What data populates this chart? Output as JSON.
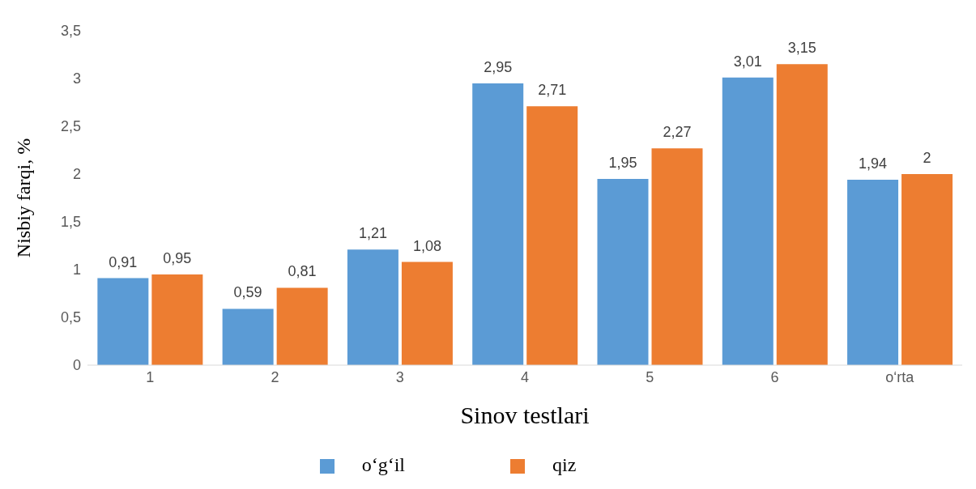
{
  "chart_data": {
    "type": "bar",
    "xlabel": "Sinov testlari",
    "ylabel": "Nisbiy farqi, %",
    "categories": [
      "1",
      "2",
      "3",
      "4",
      "5",
      "6",
      "o‘rta"
    ],
    "series": [
      {
        "name": "o‘g‘il",
        "color": "#5b9bd5",
        "values": [
          0.91,
          0.59,
          1.21,
          2.95,
          1.95,
          3.01,
          1.94
        ],
        "value_labels": [
          "0,91",
          "0,59",
          "1,21",
          "2,95",
          "1,95",
          "3,01",
          "1,94"
        ]
      },
      {
        "name": "qiz",
        "color": "#ed7d31",
        "values": [
          0.95,
          0.81,
          1.08,
          2.71,
          2.27,
          3.15,
          2
        ],
        "value_labels": [
          "0,95",
          "0,81",
          "1,08",
          "2,71",
          "2,27",
          "3,15",
          "2"
        ]
      }
    ],
    "ylim": [
      0,
      3.5
    ],
    "yticks": [
      0,
      {
        "value": 0.5,
        "label": "0,5"
      },
      1,
      {
        "value": 1.5,
        "label": "1,5"
      },
      2,
      {
        "value": 2.5,
        "label": "2,5"
      },
      3,
      {
        "value": 3.5,
        "label": "3,5"
      }
    ],
    "grid": false,
    "legend": "bottom"
  }
}
